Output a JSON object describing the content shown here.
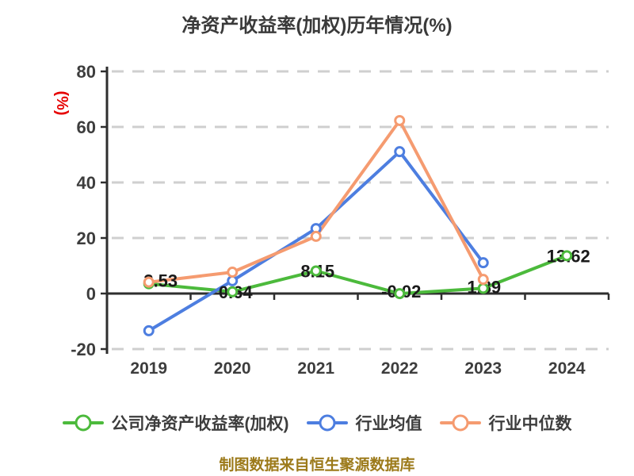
{
  "caption": "制图数据来自恒生聚源数据库",
  "colors": {
    "title": "#3a3a3a",
    "axis": "#2e2e2e",
    "grid": "#cfcfcf",
    "tick_label": "#3d3d3d",
    "unit_label": "#e60000",
    "data_label": "#1a1a1a",
    "caption": "#9c7a1a"
  },
  "chart_data": {
    "type": "line",
    "title": "净资产收益率(加权)历年情况(%)",
    "ylabel": "(%)",
    "xlabel": "",
    "categories": [
      "2019",
      "2020",
      "2021",
      "2022",
      "2023",
      "2024"
    ],
    "ylim": [
      -20,
      80
    ],
    "y_ticks": [
      80,
      60,
      40,
      20,
      0,
      -20
    ],
    "grid": "horizontal dashed",
    "legend_position": "bottom",
    "series": [
      {
        "name": "公司净资产收益率(加权)",
        "color": "#4cba3c",
        "values": [
          3.53,
          0.64,
          8.15,
          -0.02,
          1.89,
          13.62
        ],
        "labels": [
          "3.53",
          "0.64",
          "8.15",
          "-0.02",
          "1.89",
          "13.62"
        ]
      },
      {
        "name": "行业均值",
        "color": "#4d7ee0",
        "values": [
          -13.4,
          4.6,
          23.4,
          51.1,
          11.1,
          null
        ]
      },
      {
        "name": "行业中位数",
        "color": "#f59b70",
        "values": [
          4.1,
          7.7,
          20.6,
          62.3,
          5.1,
          null
        ]
      }
    ]
  }
}
